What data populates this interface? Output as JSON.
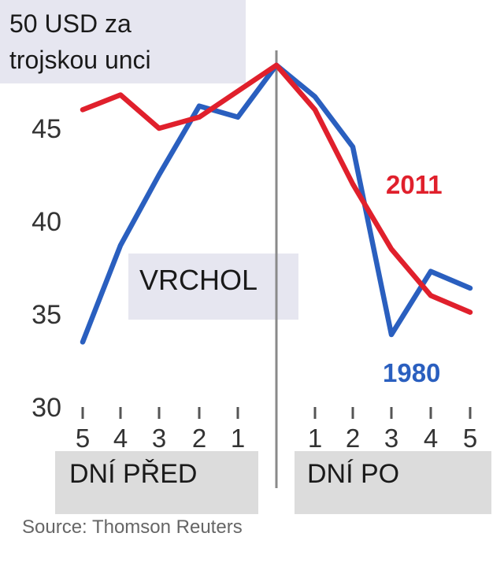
{
  "chart_data": {
    "type": "line",
    "units_label_lines": [
      "50 USD za",
      "trojskou unci"
    ],
    "peak_label": "VRCHOL",
    "periods": {
      "before": "DNÍ PŘED",
      "after": "DNÍ PO"
    },
    "x_ticks": [
      "5",
      "4",
      "3",
      "2",
      "1",
      "",
      "1",
      "2",
      "3",
      "4",
      "5"
    ],
    "y_ticks": [
      30,
      35,
      40,
      45
    ],
    "ylim": [
      30,
      49
    ],
    "grid": false,
    "series": [
      {
        "name": "1980",
        "color": "#2a5fbf",
        "values": [
          33.5,
          38.7,
          42.5,
          46.2,
          45.6,
          48.4,
          46.7,
          44.0,
          33.9,
          37.3,
          36.4
        ]
      },
      {
        "name": "2011",
        "color": "#e0202c",
        "values": [
          46.0,
          46.8,
          45.0,
          45.6,
          47.0,
          48.4,
          46.0,
          42.0,
          38.5,
          36.0,
          35.1
        ]
      }
    ],
    "source": "Source: Thomson Reuters"
  }
}
